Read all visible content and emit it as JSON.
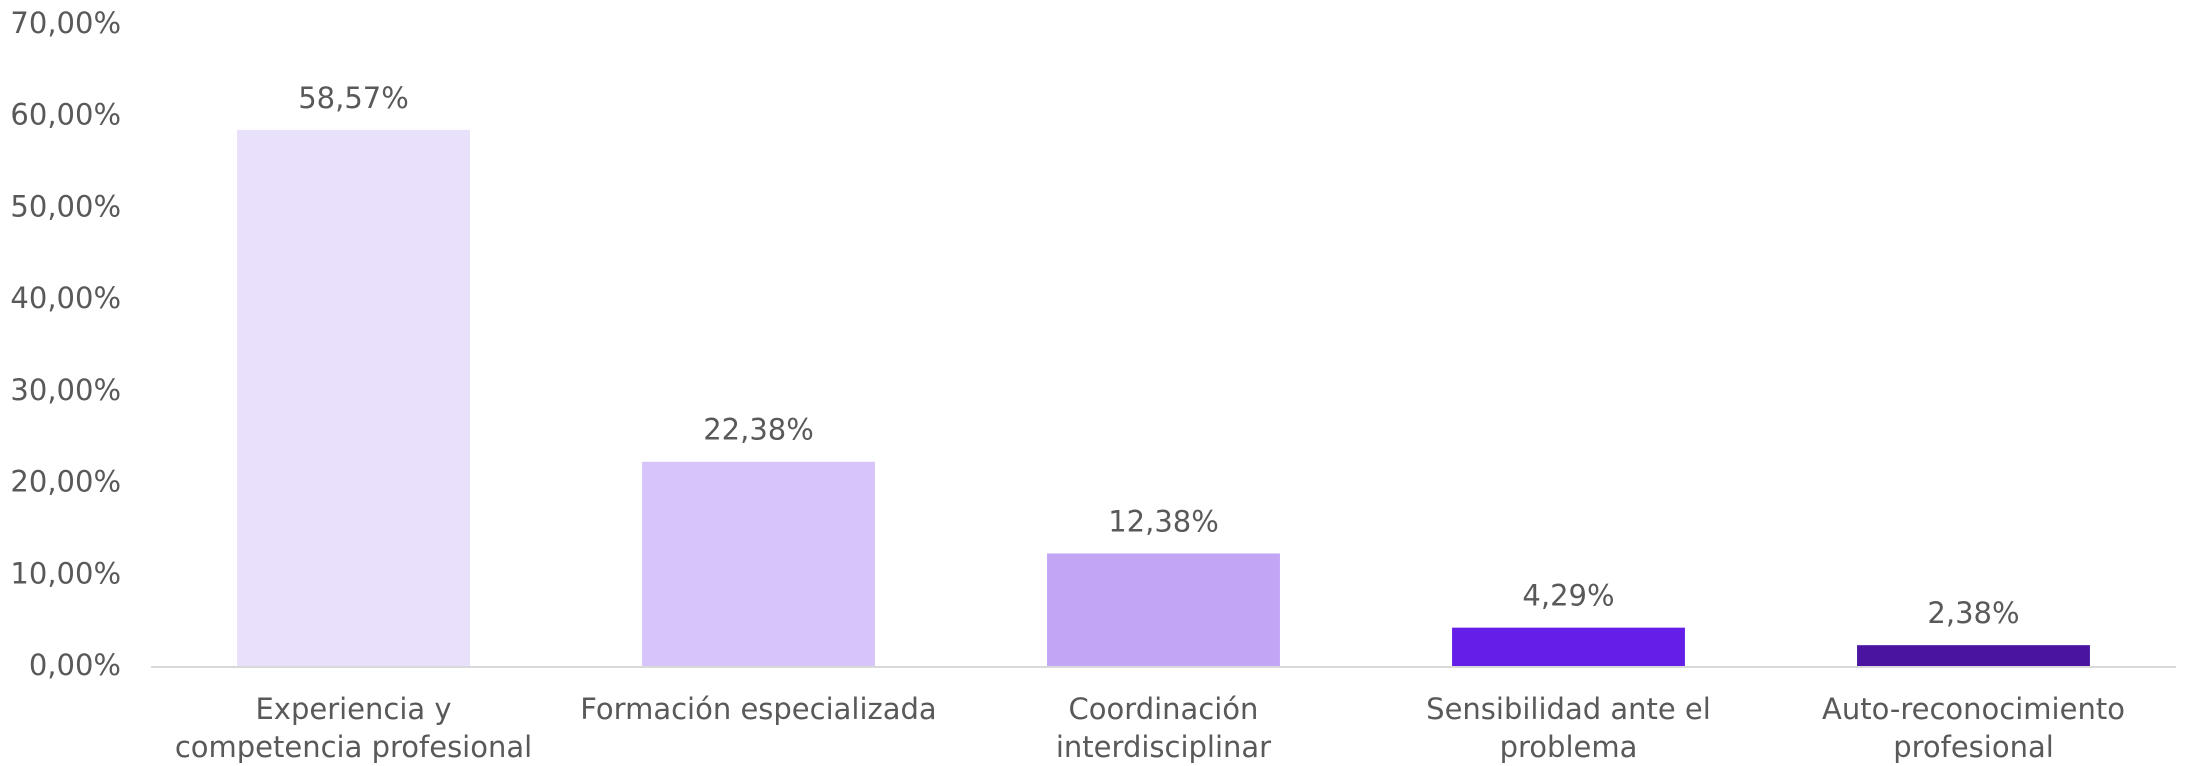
{
  "chart_data": {
    "type": "bar",
    "categories": [
      "Experiencia y competencia profesional",
      "Formación especializada",
      "Coordinación interdisciplinar",
      "Sensibilidad ante el problema",
      "Auto-reconocimiento profesional"
    ],
    "values": [
      58.57,
      22.38,
      12.38,
      4.29,
      2.38
    ],
    "value_labels": [
      "58,57%",
      "22,38%",
      "12,38%",
      "4,29%",
      "2,38%"
    ],
    "colors": [
      "#e9e0fc",
      "#d6c4fa",
      "#c3a5f6",
      "#651ee8",
      "#4a14a0"
    ],
    "ylim": [
      0,
      70
    ],
    "yticks": [
      {
        "value": 0,
        "label": "0,00%"
      },
      {
        "value": 10,
        "label": "10,00%"
      },
      {
        "value": 20,
        "label": "20,00%"
      },
      {
        "value": 30,
        "label": "30,00%"
      },
      {
        "value": 40,
        "label": "40,00%"
      },
      {
        "value": 50,
        "label": "50,00%"
      },
      {
        "value": 60,
        "label": "60,00%"
      },
      {
        "value": 70,
        "label": "70,00%"
      }
    ],
    "grid": false
  }
}
